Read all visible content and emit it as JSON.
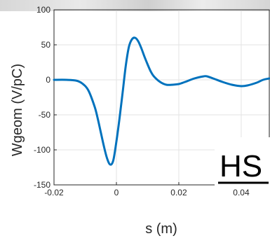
{
  "chart_data": {
    "type": "line",
    "title": "",
    "xlabel": "s (m)",
    "ylabel": "Wgeom (V/pC)",
    "xlim": [
      -0.02,
      0.049
    ],
    "ylim": [
      -150,
      100
    ],
    "xticks": [
      -0.02,
      0,
      0.02,
      0.04
    ],
    "xtick_labels": [
      "-0.02",
      "0",
      "0.02",
      "0.04"
    ],
    "yticks": [
      -150,
      -100,
      -50,
      0,
      50,
      100
    ],
    "ytick_labels": [
      "-150",
      "-100",
      "-50",
      "0",
      "50",
      "100"
    ],
    "grid": true,
    "legend": "none",
    "series": [
      {
        "color": "#0072BD",
        "x": [
          -0.02,
          -0.016,
          -0.013,
          -0.011,
          -0.009,
          -0.007,
          -0.006,
          -0.005,
          -0.004,
          -0.003,
          -0.002,
          -0.001,
          0.0,
          0.001,
          0.002,
          0.003,
          0.004,
          0.005,
          0.006,
          0.007,
          0.008,
          0.009,
          0.01,
          0.011,
          0.012,
          0.014,
          0.016,
          0.018,
          0.02,
          0.022,
          0.025,
          0.028,
          0.029,
          0.031,
          0.034,
          0.037,
          0.04,
          0.042,
          0.045,
          0.047,
          0.049
        ],
        "y": [
          0,
          0,
          -1,
          -5,
          -15,
          -38,
          -55,
          -75,
          -95,
          -112,
          -121,
          -115,
          -88,
          -55,
          -18,
          20,
          47,
          58,
          60,
          55,
          45,
          33,
          22,
          12,
          5,
          -3,
          -7,
          -7,
          -6,
          -3,
          2,
          5,
          5,
          2,
          -3,
          -7,
          -9,
          -8,
          -4,
          0,
          2
        ]
      }
    ]
  },
  "overlay": {
    "badge_text": "HS"
  }
}
